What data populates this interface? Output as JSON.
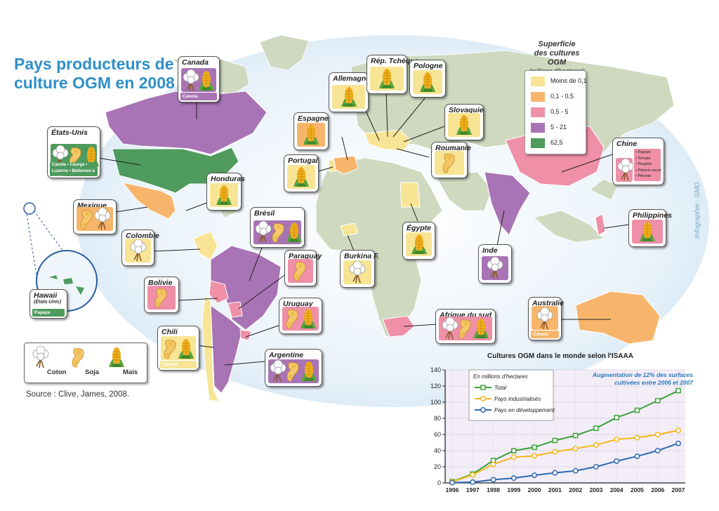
{
  "title": [
    "Pays producteurs de",
    "culture OGM en 2008"
  ],
  "source": "Source : Clive, James, 2008.",
  "credit": "Infographie : SMD",
  "legend": {
    "title": [
      "Superficie",
      "des cultures OGM"
    ],
    "subtitle": "(millions d'hectares)",
    "items": [
      {
        "label": "Moins de 0,1",
        "color": "#f7e494"
      },
      {
        "label": "0,1 - 0,5",
        "color": "#f7b56c"
      },
      {
        "label": "0,5 - 5",
        "color": "#ef8fa8"
      },
      {
        "label": "5 - 21",
        "color": "#a874b5"
      },
      {
        "label": "62,5",
        "color": "#4e9b5d"
      }
    ]
  },
  "crop_key": [
    {
      "label": "Coton",
      "icon": "cotton-icon"
    },
    {
      "label": "Soja",
      "icon": "soy-icon"
    },
    {
      "label": "Maïs",
      "icon": "corn-icon"
    }
  ],
  "countries": [
    {
      "name": "Canada",
      "crops": [
        "cotton",
        "corn"
      ],
      "extra": "Canola",
      "band": "#a874b5"
    },
    {
      "name": "États-Unis",
      "crops": [
        "cotton",
        "soy",
        "corn"
      ],
      "extra": "Canola • Courge • Luzerne • Betterave à sucre",
      "band": "#4e9b5d"
    },
    {
      "name": "Mexique",
      "crops": [
        "soy",
        "cotton"
      ],
      "band": "#f7b56c"
    },
    {
      "name": "Honduras",
      "crops": [
        "corn"
      ],
      "band": "#f7e494"
    },
    {
      "name": "Colombie",
      "crops": [
        "cotton"
      ],
      "band": "#f7e494"
    },
    {
      "name": "Hawaii",
      "sub": "(États-Unis)",
      "crops": [],
      "extra": "Papaye",
      "band": "#4e9b5d"
    },
    {
      "name": "Brésil",
      "crops": [
        "cotton",
        "soy",
        "corn"
      ],
      "band": "#a874b5"
    },
    {
      "name": "Paraguay",
      "crops": [
        "soy"
      ],
      "band": "#ef8fa8"
    },
    {
      "name": "Bolivie",
      "crops": [
        "soy"
      ],
      "band": "#ef8fa8"
    },
    {
      "name": "Uruguay",
      "crops": [
        "soy",
        "corn"
      ],
      "band": "#ef8fa8"
    },
    {
      "name": "Chili",
      "crops": [
        "soy",
        "corn"
      ],
      "extra": "Canola",
      "band": "#f7e494"
    },
    {
      "name": "Argentine",
      "crops": [
        "cotton",
        "soy",
        "corn"
      ],
      "band": "#a874b5"
    },
    {
      "name": "Espagne",
      "crops": [
        "corn"
      ],
      "band": "#f7b56c"
    },
    {
      "name": "Portugal",
      "crops": [
        "corn"
      ],
      "band": "#f7e494"
    },
    {
      "name": "Allemagne",
      "crops": [
        "corn"
      ],
      "band": "#f7e494"
    },
    {
      "name": "Rép. Tchèque",
      "crops": [
        "corn"
      ],
      "band": "#f7e494"
    },
    {
      "name": "Pologne",
      "crops": [
        "corn"
      ],
      "band": "#f7e494"
    },
    {
      "name": "Slovaquie",
      "crops": [
        "corn"
      ],
      "band": "#f7e494"
    },
    {
      "name": "Roumanie",
      "crops": [
        "soy"
      ],
      "band": "#f7e494"
    },
    {
      "name": "Égypte",
      "crops": [
        "corn"
      ],
      "band": "#f7e494"
    },
    {
      "name": "Burkina F.",
      "crops": [
        "cotton"
      ],
      "band": "#f7e494"
    },
    {
      "name": "Afrique du sud",
      "crops": [
        "cotton",
        "soy",
        "corn"
      ],
      "band": "#ef8fa8"
    },
    {
      "name": "Inde",
      "crops": [
        "cotton"
      ],
      "band": "#a874b5"
    },
    {
      "name": "Chine",
      "crops": [
        "cotton"
      ],
      "list": [
        "Papaye",
        "Tomate",
        "Peuplier",
        "Poivron sucré",
        "Pétunia"
      ],
      "band": "#ef8fa8"
    },
    {
      "name": "Philippines",
      "crops": [
        "corn"
      ],
      "band": "#ef8fa8"
    },
    {
      "name": "Australie",
      "crops": [
        "cotton"
      ],
      "extra": "Canola",
      "band": "#f7b56c"
    }
  ],
  "chart_data": {
    "type": "line",
    "title": "Cultures OGM dans le monde selon l'ISAAA",
    "note": "Augmentation de 12% des surfaces cultivées entre 2006 et 2007",
    "legend_title": "En millions d'hectares",
    "x": [
      "1996",
      "1997",
      "1998",
      "1999",
      "2000",
      "2001",
      "2002",
      "2003",
      "2004",
      "2005",
      "2006",
      "2007"
    ],
    "yticks": [
      "0",
      "20",
      "40",
      "60",
      "80",
      "100",
      "120",
      "140"
    ],
    "ylim": [
      0,
      140
    ],
    "series": [
      {
        "name": "Total",
        "color": "#3aa23a",
        "values": [
          1.7,
          11,
          27.8,
          39.9,
          44.2,
          52.6,
          58.7,
          67.7,
          81,
          90,
          102,
          114.3
        ]
      },
      {
        "name": "Pays industrialisés",
        "color": "#f4b61a",
        "values": [
          1.3,
          10,
          23,
          32,
          33.5,
          38.5,
          42.5,
          47,
          54,
          56,
          60,
          65
        ]
      },
      {
        "name": "Pays en développement",
        "color": "#2e67b1",
        "values": [
          0.4,
          1,
          4,
          6,
          9.5,
          12.5,
          15,
          20,
          27,
          33,
          40,
          49
        ]
      }
    ]
  }
}
